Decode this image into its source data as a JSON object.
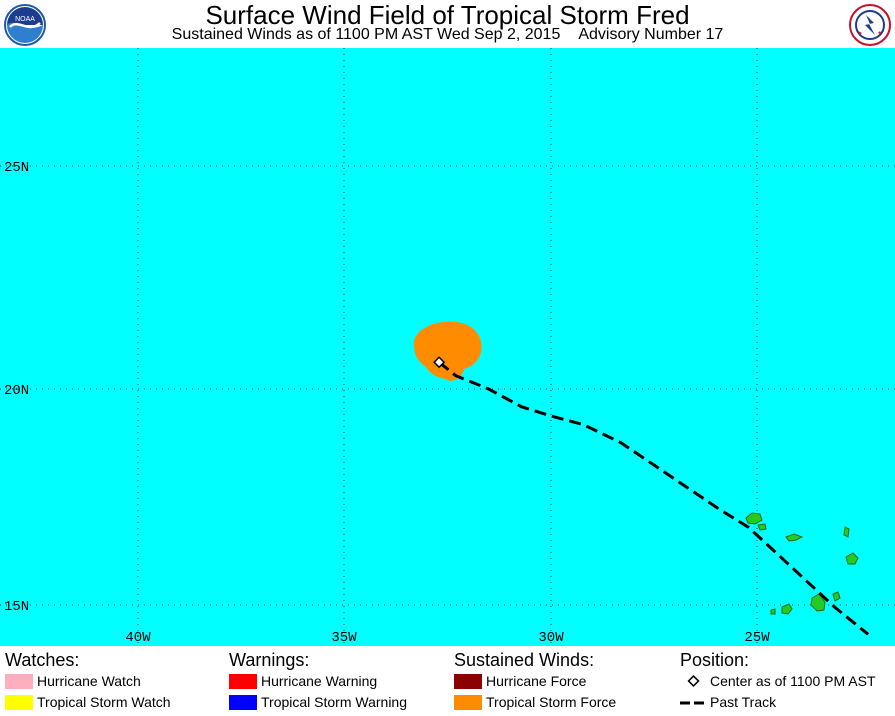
{
  "header": {
    "title": "Surface Wind Field of Tropical Storm Fred",
    "subtitle_time": "Sustained Winds as of 1100 PM AST Wed Sep 2, 2015",
    "subtitle_advisory": "Advisory Number 17"
  },
  "map": {
    "ocean_color": "#00ffff",
    "land_color": "#22cc22",
    "lat_labels": [
      "25N",
      "20N",
      "15N"
    ],
    "lon_labels": [
      "40W",
      "35W",
      "30W",
      "25W"
    ],
    "storm_center": {
      "lat": 20.6,
      "lon": 32.7
    },
    "past_track": [
      [
        32.7,
        20.6
      ],
      [
        32.3,
        20.3
      ],
      [
        31.5,
        20.0
      ],
      [
        30.7,
        19.6
      ],
      [
        30.0,
        19.4
      ],
      [
        29.2,
        19.2
      ],
      [
        28.3,
        18.8
      ],
      [
        27.5,
        18.3
      ],
      [
        26.7,
        17.8
      ],
      [
        25.9,
        17.3
      ],
      [
        25.2,
        16.9
      ],
      [
        24.5,
        16.3
      ],
      [
        23.8,
        15.7
      ],
      [
        23.1,
        15.1
      ],
      [
        22.3,
        14.5
      ]
    ]
  },
  "legend": {
    "watches": {
      "heading": "Watches:",
      "items": [
        {
          "label": "Hurricane Watch",
          "color": "#ffaebf"
        },
        {
          "label": "Tropical Storm Watch",
          "color": "#ffff00"
        }
      ]
    },
    "warnings": {
      "heading": "Warnings:",
      "items": [
        {
          "label": "Hurricane Warning",
          "color": "#ff0000"
        },
        {
          "label": "Tropical Storm Warning",
          "color": "#0000ff"
        }
      ]
    },
    "winds": {
      "heading": "Sustained Winds:",
      "items": [
        {
          "label": "Hurricane Force",
          "color": "#8b0000"
        },
        {
          "label": "Tropical Storm Force",
          "color": "#ff8c00"
        }
      ]
    },
    "position": {
      "heading": "Position:",
      "center_label": "Center as of 1100 PM AST",
      "track_label": "Past Track"
    }
  }
}
